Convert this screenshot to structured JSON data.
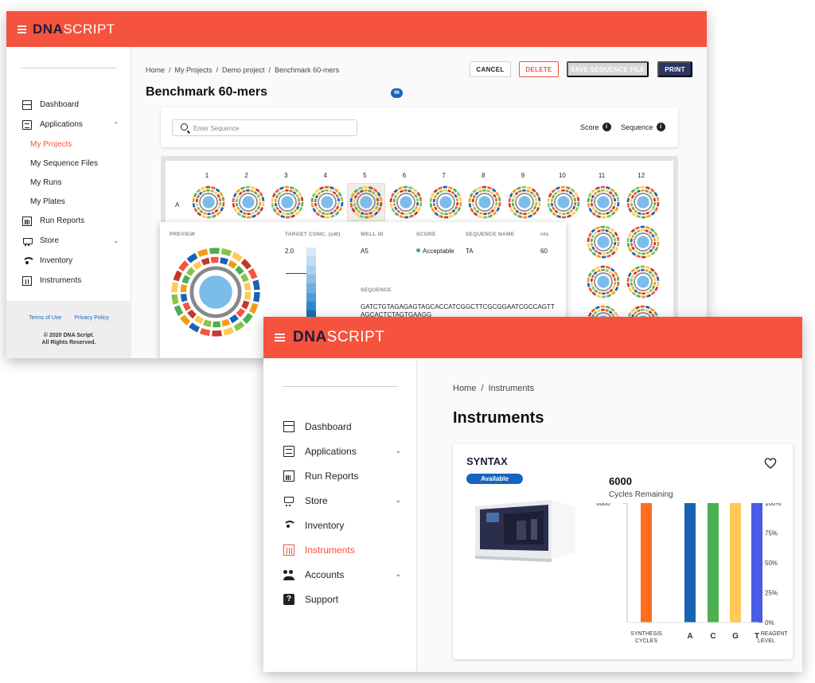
{
  "brand": {
    "dna": "DNA",
    "script": "SCRIPT",
    "accent": "#f5533d",
    "navy": "#2c3563"
  },
  "win1": {
    "sidebar": {
      "items": [
        {
          "label": "Dashboard",
          "icon": "dashboard-icon"
        },
        {
          "label": "Applications",
          "icon": "clipboard-icon",
          "caret": "⌃"
        },
        {
          "label": "Run Reports",
          "icon": "bar-chart-icon"
        },
        {
          "label": "Store",
          "icon": "cart-icon",
          "caret": "⌄"
        },
        {
          "label": "Inventory",
          "icon": "wifi-icon"
        },
        {
          "label": "Instruments",
          "icon": "plate-icon"
        }
      ],
      "subitems": [
        "My Projects",
        "My Sequence Files",
        "My Runs",
        "My Plates"
      ],
      "active_subitem": "My Projects",
      "footer": {
        "terms": "Terms of Use",
        "privacy": "Privacy Policy",
        "copyright_1": "© 2020 DNA Script.",
        "copyright_2": "All Rights Reserved."
      }
    },
    "breadcrumb": "Home  /  My Projects  /  Demo project  /  Benchmark 60-mers",
    "buttons": {
      "cancel": "CANCEL",
      "delete": "DELETE",
      "save": "SAVE SEQUENCE FILE",
      "print": "PRINT"
    },
    "title": "Benchmark 60-mers",
    "count_badge": "96",
    "search": {
      "placeholder": "Enter Sequence",
      "value": ""
    },
    "toggles": {
      "score": "Score",
      "sequence": "Sequence"
    },
    "plate": {
      "columns": [
        "1",
        "2",
        "3",
        "4",
        "5",
        "6",
        "7",
        "8",
        "9",
        "10",
        "11",
        "12"
      ],
      "rows": [
        "A"
      ],
      "selected_well": "A5"
    },
    "preview": {
      "headers": {
        "preview": "PREVIEW",
        "conc": "TARGET CONC. (uM)",
        "well": "WELL ID",
        "score": "SCORE",
        "seqname": "SEQUENCE NAME",
        "nts": "nts",
        "sequence": "SEQUENCE"
      },
      "conc": "2.0",
      "well_id": "A5",
      "score": "Acceptable",
      "sequence_name": "TA",
      "nts": "60",
      "sequence": "GATCTGTAGAGAGTAGCACCATCGGCTTCGCGGAATCGCCAGTTAGCACTCTAGTGAAGG"
    }
  },
  "win2": {
    "sidebar": {
      "items": [
        {
          "label": "Dashboard",
          "icon": "dashboard-icon"
        },
        {
          "label": "Applications",
          "icon": "clipboard-icon",
          "caret": "⌄"
        },
        {
          "label": "Run Reports",
          "icon": "bar-chart-icon"
        },
        {
          "label": "Store",
          "icon": "cart-icon",
          "caret": "⌄"
        },
        {
          "label": "Inventory",
          "icon": "wifi-icon"
        },
        {
          "label": "Instruments",
          "icon": "plate-icon",
          "active": true
        },
        {
          "label": "Accounts",
          "icon": "people-icon",
          "caret": "⌄"
        },
        {
          "label": "Support",
          "icon": "help-icon"
        }
      ]
    },
    "breadcrumb": "Home  /  Instruments",
    "title": "Instruments",
    "instrument": {
      "name": "SYNTAX",
      "status": "Available",
      "cycles": "6000",
      "cycles_label": "Cycles Remaining",
      "favorite_icon": "heart-outline-icon"
    }
  },
  "chart_data": {
    "type": "bar",
    "categories": [
      "SYNTHESIS CYCLES",
      "A",
      "C",
      "G",
      "T"
    ],
    "values": [
      6000,
      100,
      100,
      100,
      100
    ],
    "units": [
      "cycles",
      "%",
      "%",
      "%",
      "%"
    ],
    "colors": [
      "#ff6d1f",
      "#1762b5",
      "#4caf50",
      "#ffc857",
      "#4a5be6"
    ],
    "left_axis": {
      "ticks": [
        "6000"
      ],
      "ylim": [
        0,
        6000
      ]
    },
    "right_axis": {
      "label": "REAGENTS LEVEL",
      "ticks": [
        "100%",
        "75%",
        "50%",
        "25%",
        "0%"
      ],
      "ylim": [
        0,
        100
      ]
    },
    "category_labels": {
      "cycles_line1": "SYNTHESIS",
      "cycles_line2": "CYCLES",
      "reagents_line1": "REAGENTS",
      "reagents_line2": "LEVEL"
    }
  }
}
